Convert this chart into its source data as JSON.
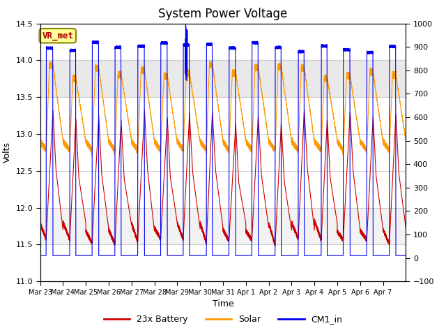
{
  "title": "System Power Voltage",
  "xlabel": "Time",
  "ylabel_left": "Volts",
  "ylabel_right": "",
  "ylim_left": [
    11.0,
    14.5
  ],
  "ylim_right": [
    -100,
    1000
  ],
  "yticks_left": [
    11.0,
    11.5,
    12.0,
    12.5,
    13.0,
    13.5,
    14.0,
    14.5
  ],
  "yticks_right": [
    -100,
    0,
    100,
    200,
    300,
    400,
    500,
    600,
    700,
    800,
    900,
    1000
  ],
  "color_battery": "#cc0000",
  "color_solar": "#ff9900",
  "color_cm1": "#0000ee",
  "legend_labels": [
    "23x Battery",
    "Solar",
    "CM1_in"
  ],
  "vr_met_label": "VR_met",
  "vr_met_color": "#aa0000",
  "vr_met_bg": "#ffff99",
  "vr_met_border": "#888800",
  "n_days": 16,
  "bg_band_color": "#e0e0e0",
  "grid_color": "#cccccc",
  "title_fontsize": 12,
  "label_fontsize": 9,
  "tick_fontsize": 8,
  "legend_fontsize": 9
}
